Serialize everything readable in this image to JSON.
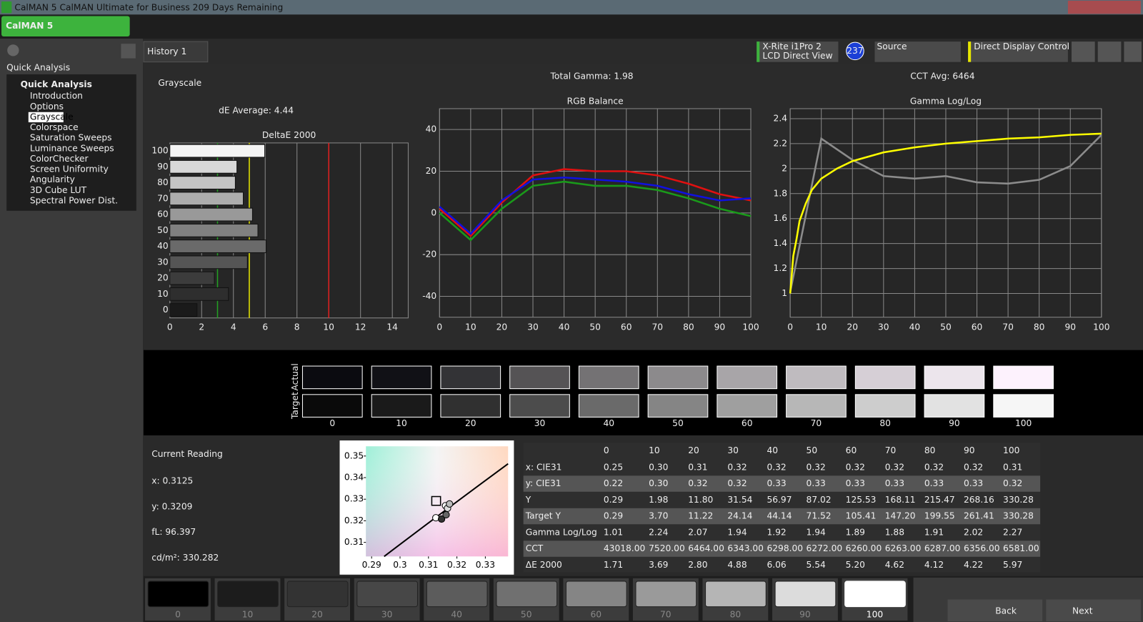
{
  "window_title": "CalMAN 5 CalMAN Ultimate for Business 209 Days Remaining",
  "logo": "CalMAN 5",
  "sidebar": {
    "title": "Quick Analysis",
    "tree_root": "Quick Analysis",
    "items": [
      "Introduction",
      "Options",
      "Grayscale",
      "Colorspace",
      "Saturation Sweeps",
      "Luminance Sweeps",
      "ColorChecker",
      "Screen Uniformity",
      "Angularity",
      "3D Cube LUT",
      "Spectral Power Dist."
    ],
    "selected": 2
  },
  "tabs": [
    "History 1"
  ],
  "toolbar": {
    "meter_line1": "X-Rite i1Pro 2",
    "meter_line2": "LCD Direct View",
    "meter_badge": "237",
    "source": "Source",
    "display": "Direct Display Control"
  },
  "header": {
    "title": "Grayscale",
    "de_average": "dE Average: 4.44",
    "total_gamma": "Total Gamma: 1.98",
    "cct_avg": "CCT Avg: 6464"
  },
  "chart_data": [
    {
      "type": "bar",
      "orientation": "horizontal",
      "title": "DeltaE 2000",
      "categories": [
        0,
        10,
        20,
        30,
        40,
        50,
        60,
        70,
        80,
        90,
        100
      ],
      "values": [
        1.71,
        3.69,
        2.8,
        4.88,
        6.06,
        5.54,
        5.2,
        4.62,
        4.12,
        4.22,
        5.97
      ],
      "colors": [
        "#1a1a1a",
        "#2e2e2e",
        "#3c3c3c",
        "#555555",
        "#6a6a6a",
        "#808080",
        "#999999",
        "#adadad",
        "#c4c4c4",
        "#d8d8d8",
        "#f4f4f4"
      ],
      "xlim": [
        0,
        15
      ],
      "xticks": [
        0,
        2,
        4,
        6,
        8,
        10,
        12,
        14
      ],
      "grid": true,
      "reference_lines": [
        {
          "value": 3,
          "color": "#22a022"
        },
        {
          "value": 5,
          "color": "#e6e600"
        },
        {
          "value": 10,
          "color": "#e02020"
        }
      ]
    },
    {
      "type": "line",
      "title": "RGB Balance",
      "x": [
        0,
        10,
        20,
        30,
        40,
        50,
        60,
        70,
        80,
        90,
        100
      ],
      "series": [
        {
          "color": "#e01010",
          "values": [
            2,
            -11,
            5,
            18,
            21,
            20,
            20,
            18,
            14,
            9,
            6
          ]
        },
        {
          "color": "#1a9a1a",
          "values": [
            0,
            -13,
            2,
            13,
            15,
            13,
            13,
            11,
            7,
            2,
            -1.5
          ]
        },
        {
          "color": "#1010e0",
          "values": [
            3,
            -10,
            6,
            16,
            17,
            16,
            15,
            13,
            9,
            6,
            7
          ]
        }
      ],
      "xlim": [
        0,
        100
      ],
      "xticks": [
        0,
        10,
        20,
        30,
        40,
        50,
        60,
        70,
        80,
        90,
        100
      ],
      "ylim": [
        -50,
        50
      ],
      "yticks": [
        -40,
        -20,
        0,
        20,
        40
      ],
      "grid": true
    },
    {
      "type": "line",
      "title": "Gamma Log/Log",
      "x": [
        0,
        10,
        20,
        30,
        40,
        50,
        60,
        70,
        80,
        90,
        100
      ],
      "series": [
        {
          "color": "#8c8c8c",
          "values": [
            1.01,
            2.24,
            2.07,
            1.94,
            1.92,
            1.94,
            1.89,
            1.88,
            1.91,
            2.02,
            2.27
          ]
        },
        {
          "color": "#ffff00",
          "x": [
            0,
            1,
            2,
            3,
            5,
            7,
            10,
            15,
            20,
            30,
            40,
            50,
            60,
            70,
            80,
            90,
            100
          ],
          "values": [
            1.0,
            1.3,
            1.43,
            1.58,
            1.72,
            1.83,
            1.92,
            2.0,
            2.06,
            2.13,
            2.17,
            2.2,
            2.22,
            2.24,
            2.25,
            2.27,
            2.28
          ]
        }
      ],
      "xlim": [
        0,
        100
      ],
      "xticks": [
        0,
        10,
        20,
        30,
        40,
        50,
        60,
        70,
        80,
        90,
        100
      ],
      "ylim": [
        0.81,
        2.48
      ],
      "yticks": [
        1,
        1.2,
        1.4,
        1.6,
        1.8,
        2,
        2.2,
        2.4
      ],
      "grid": true
    },
    {
      "type": "scatter",
      "x": [
        0.3126,
        0.3146,
        0.3162,
        0.316,
        0.3167,
        0.3174
      ],
      "values": [
        0.3214,
        0.3208,
        0.3228,
        0.327,
        0.3258,
        0.3278
      ],
      "colors": [
        "#ffffff",
        "#333333",
        "#666666",
        "#ffffff",
        "#dddddd",
        "#bbbbbb"
      ],
      "target": {
        "x": 0.3127,
        "y": 0.3292
      },
      "xlim": [
        0.288,
        0.338
      ],
      "xticks": [
        0.29,
        0.3,
        0.31,
        0.32,
        0.33
      ],
      "ylim": [
        0.3035,
        0.3545
      ],
      "yticks": [
        0.31,
        0.32,
        0.33,
        0.34,
        0.35
      ]
    }
  ],
  "swatches": {
    "row_labels": [
      "Actual",
      "Target"
    ],
    "labels": [
      0,
      10,
      20,
      30,
      40,
      50,
      60,
      70,
      80,
      90,
      100
    ],
    "actual_colors": [
      "#0b0b10",
      "#111116",
      "#333336",
      "#555355",
      "#747274",
      "#8c8a8c",
      "#a8a5a8",
      "#bfbbbf",
      "#d6cfd6",
      "#ece5ec",
      "#fdf2fd"
    ],
    "target_colors": [
      "#0a0a0a",
      "#1a1a1a",
      "#303030",
      "#4c4c4c",
      "#6a6a6a",
      "#858585",
      "#9f9f9f",
      "#b7b7b7",
      "#cdcdcd",
      "#e2e2e2",
      "#f6f6f6"
    ]
  },
  "current_reading": {
    "title": "Current Reading",
    "x": "x: 0.3125",
    "y": "y: 0.3209",
    "fl": "fL: 96.397",
    "cdm2": "cd/m²: 330.282"
  },
  "table": {
    "header": [
      "0",
      "10",
      "20",
      "30",
      "40",
      "50",
      "60",
      "70",
      "80",
      "90",
      "100"
    ],
    "rows": [
      [
        "x: CIE31",
        "0.25",
        "0.30",
        "0.31",
        "0.32",
        "0.32",
        "0.32",
        "0.32",
        "0.32",
        "0.32",
        "0.32",
        "0.31"
      ],
      [
        "y: CIE31",
        "0.22",
        "0.30",
        "0.32",
        "0.32",
        "0.33",
        "0.33",
        "0.33",
        "0.33",
        "0.33",
        "0.33",
        "0.32"
      ],
      [
        "Y",
        "0.29",
        "1.98",
        "11.80",
        "31.54",
        "56.97",
        "87.02",
        "125.53",
        "168.11",
        "215.47",
        "268.16",
        "330.28"
      ],
      [
        "Target Y",
        "0.29",
        "3.70",
        "11.22",
        "24.14",
        "44.14",
        "71.52",
        "105.41",
        "147.20",
        "199.55",
        "261.41",
        "330.28"
      ],
      [
        "Gamma Log/Log",
        "1.01",
        "2.24",
        "2.07",
        "1.94",
        "1.92",
        "1.94",
        "1.89",
        "1.88",
        "1.91",
        "2.02",
        "2.27"
      ],
      [
        "CCT",
        "43018.00",
        "7520.00",
        "6464.00",
        "6343.00",
        "6298.00",
        "6272.00",
        "6260.00",
        "6263.00",
        "6287.00",
        "6356.00",
        "6581.00"
      ],
      [
        "ΔE 2000",
        "1.71",
        "3.69",
        "2.80",
        "4.88",
        "6.06",
        "5.54",
        "5.20",
        "4.62",
        "4.12",
        "4.22",
        "5.97"
      ]
    ]
  },
  "patch_bar": {
    "labels": [
      0,
      10,
      20,
      30,
      40,
      50,
      60,
      70,
      80,
      90,
      100
    ],
    "colors": [
      "#000000",
      "#1c1c1c",
      "#333333",
      "#474747",
      "#5c5c5c",
      "#707070",
      "#858585",
      "#9a9a9a",
      "#b5b5b5",
      "#dcdcdc",
      "#ffffff"
    ],
    "selected": 10
  },
  "nav": {
    "back": "Back",
    "next": "Next"
  }
}
